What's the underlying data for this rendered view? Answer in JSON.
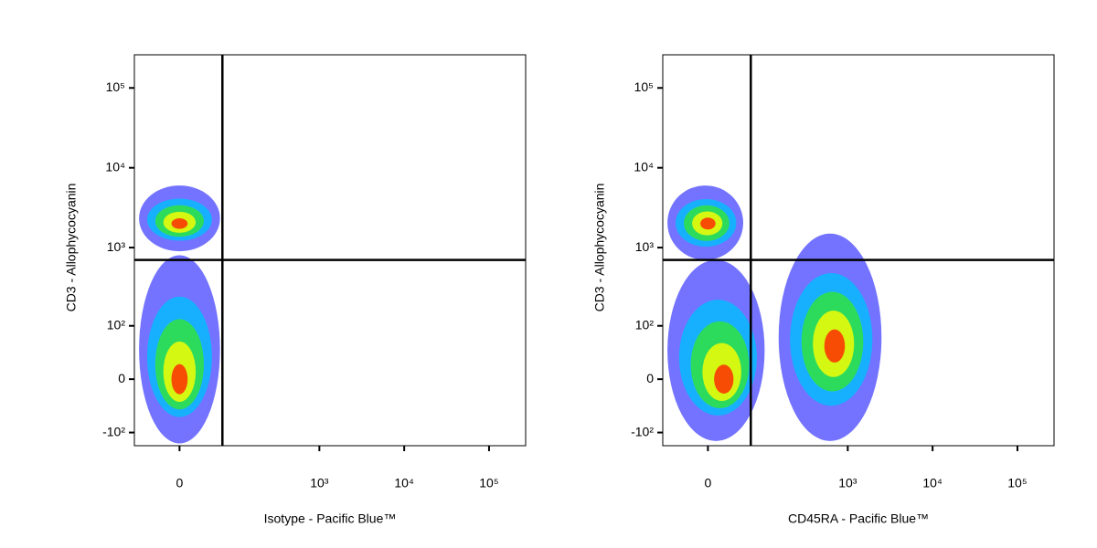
{
  "chart_data": [
    {
      "type": "density-scatter",
      "xlabel": "Isotype - Pacific Blue™",
      "ylabel": "CD3 - Allophycocyanin",
      "xscale": "biexponential",
      "yscale": "biexponential",
      "xlim": [
        -70,
        270000
      ],
      "ylim": [
        -150,
        260000
      ],
      "xticks": [
        0,
        {
          "value": 1000,
          "label": "10³"
        },
        {
          "value": 10000,
          "label": "10⁴"
        },
        {
          "value": 100000,
          "label": "10⁵"
        }
      ],
      "yticks": [
        {
          "value": -100,
          "label": "-10²"
        },
        0,
        {
          "value": 100,
          "label": "10²"
        },
        {
          "value": 1000,
          "label": "10³"
        },
        {
          "value": 10000,
          "label": "10⁴"
        },
        {
          "value": 100000,
          "label": "10⁵"
        }
      ],
      "gate": {
        "x": 65,
        "y": 700
      },
      "density_colors": [
        "#0000ff",
        "#00bfff",
        "#33e633",
        "#ffff00",
        "#ff2000"
      ],
      "populations": [
        {
          "x": 0,
          "y": 2000,
          "xrange": [
            -60,
            60
          ],
          "yrange": [
            900,
            6000
          ]
        },
        {
          "x": 0,
          "y": 0,
          "xrange": [
            -60,
            60
          ],
          "yrange": [
            -140,
            800
          ]
        }
      ]
    },
    {
      "type": "density-scatter",
      "xlabel": "CD45RA - Pacific Blue™",
      "ylabel": "CD3 - Allophycocyanin",
      "xscale": "biexponential",
      "yscale": "biexponential",
      "xlim": [
        -70,
        270000
      ],
      "ylim": [
        -150,
        260000
      ],
      "xticks": [
        0,
        {
          "value": 1000,
          "label": "10³"
        },
        {
          "value": 10000,
          "label": "10⁴"
        },
        {
          "value": 100000,
          "label": "10⁵"
        }
      ],
      "yticks": [
        {
          "value": -100,
          "label": "-10²"
        },
        0,
        {
          "value": 100,
          "label": "10²"
        },
        {
          "value": 1000,
          "label": "10³"
        },
        {
          "value": 10000,
          "label": "10⁴"
        },
        {
          "value": 100000,
          "label": "10⁵"
        }
      ],
      "gate": {
        "x": 65,
        "y": 700
      },
      "density_colors": [
        "#0000ff",
        "#00bfff",
        "#33e633",
        "#ffff00",
        "#ff2000"
      ],
      "populations": [
        {
          "x": 0,
          "y": 2000,
          "xrange": [
            -60,
            50
          ],
          "yrange": [
            700,
            6000
          ]
        },
        {
          "x": 20,
          "y": 0,
          "xrange": [
            -60,
            100
          ],
          "yrange": [
            -130,
            700
          ]
        },
        {
          "x": 700,
          "y": 50,
          "xrange": [
            150,
            2500
          ],
          "yrange": [
            -130,
            1500
          ]
        }
      ]
    }
  ]
}
